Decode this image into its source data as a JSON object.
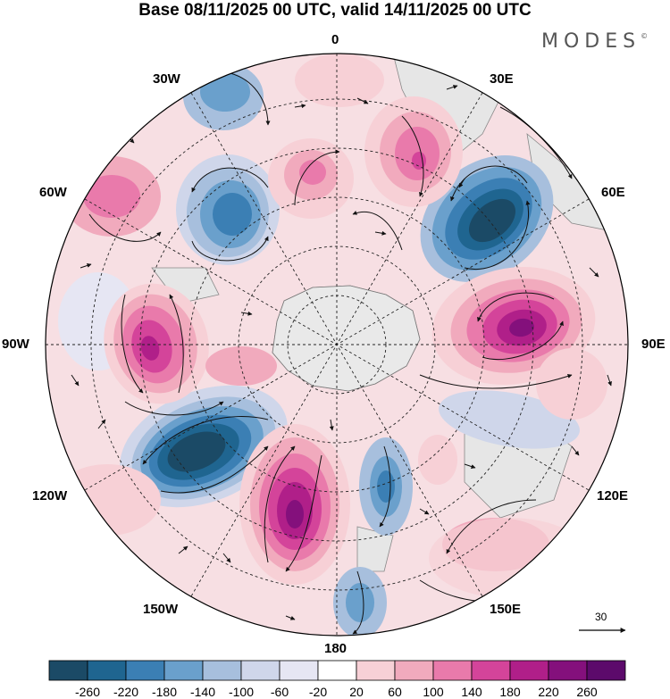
{
  "title": "Base 08/11/2025 00 UTC, valid 14/11/2025 00 UTC",
  "brand": "MODES",
  "brand_mark": "©",
  "longitude_labels": {
    "n0": "0",
    "e30": "30E",
    "e60": "60E",
    "e90": "90E",
    "e120": "120E",
    "e150": "150E",
    "s180": "180",
    "w150": "150W",
    "w120": "120W",
    "w90": "90W",
    "w60": "60W",
    "w30": "30W"
  },
  "reference_vector_label": "30",
  "colorbar": {
    "tick_labels": [
      "-260",
      "-220",
      "-180",
      "-140",
      "-100",
      "-60",
      "-20",
      "20",
      "60",
      "100",
      "140",
      "180",
      "220",
      "260"
    ],
    "colors": [
      "#1b4a66",
      "#1f6590",
      "#3b7fb4",
      "#6aa0cc",
      "#a7bfdd",
      "#cfd6ea",
      "#e6e6f3",
      "#ffffff",
      "#f7d0d6",
      "#f1aabd",
      "#e97aab",
      "#d4449a",
      "#b01f89",
      "#84107c",
      "#5c0a6b"
    ]
  },
  "colors": {
    "land": "#e9e9e9",
    "coast": "#777777",
    "grid": "#222222",
    "arrow": "#111111"
  }
}
